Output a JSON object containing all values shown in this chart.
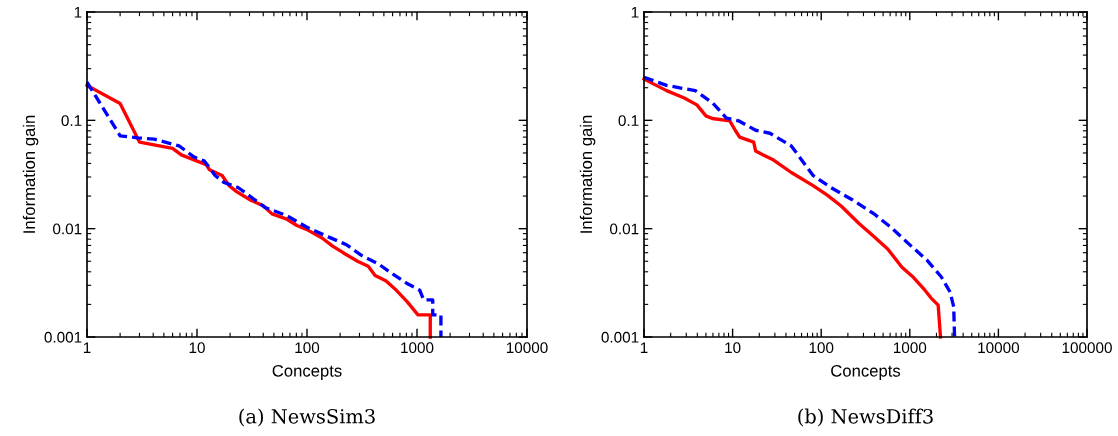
{
  "chart_data": [
    {
      "type": "line",
      "title": "(a) NewsSim3",
      "xlabel": "Concepts",
      "ylabel": "Information gain",
      "log": "xy",
      "xlim": [
        1,
        10000
      ],
      "xticks": [
        1,
        10,
        100,
        1000,
        10000
      ],
      "ylim": [
        0.001,
        1
      ],
      "yticks": [
        0.001,
        0.01,
        0.1,
        1
      ],
      "series": [
        {
          "color": "#ff0000",
          "line_style": "solid",
          "x": [
            1,
            2,
            3,
            6,
            7.2,
            12.1,
            13,
            16.9,
            19.7,
            22.9,
            30.8,
            40,
            48,
            64.6,
            80.9,
            100,
            137,
            171,
            213,
            288,
            360,
            416,
            520,
            650,
            820,
            1020,
            1320,
            1320
          ],
          "values": [
            0.21,
            0.143,
            0.063,
            0.055,
            0.048,
            0.039,
            0.035,
            0.031,
            0.0248,
            0.022,
            0.0183,
            0.0163,
            0.0137,
            0.0123,
            0.0107,
            0.0098,
            0.0082,
            0.0069,
            0.006,
            0.005,
            0.0045,
            0.0037,
            0.0033,
            0.0027,
            0.0021,
            0.0016,
            0.0016,
            0.001
          ]
        },
        {
          "color": "#0000ff",
          "line_style": "dashed",
          "x": [
            1,
            2,
            2.85,
            4.1,
            6.9,
            9.35,
            11.7,
            14.6,
            17.6,
            23.6,
            30.8,
            41.5,
            64.6,
            100,
            156,
            229,
            310,
            450,
            604,
            820,
            1060,
            1150,
            1390,
            1390,
            1650,
            1650
          ],
          "values": [
            0.225,
            0.072,
            0.069,
            0.067,
            0.058,
            0.046,
            0.042,
            0.031,
            0.0267,
            0.024,
            0.0197,
            0.0157,
            0.0133,
            0.0103,
            0.0084,
            0.0071,
            0.0057,
            0.0047,
            0.0038,
            0.0031,
            0.0027,
            0.0022,
            0.0022,
            0.0016,
            0.0016,
            0.001
          ]
        }
      ]
    },
    {
      "type": "line",
      "title": "(b) NewsDiff3",
      "xlabel": "Concepts",
      "ylabel": "Information gain",
      "log": "xy",
      "xlim": [
        1,
        100000
      ],
      "xticks": [
        1,
        10,
        100,
        1000,
        10000,
        100000
      ],
      "ylim": [
        0.001,
        1
      ],
      "yticks": [
        0.001,
        0.01,
        0.1,
        1
      ],
      "series": [
        {
          "color": "#ff0000",
          "line_style": "solid",
          "x": [
            1,
            1.8,
            2.85,
            3.95,
            5,
            5.9,
            9.3,
            10.7,
            12,
            17.3,
            18.2,
            29,
            46,
            81,
            116,
            168,
            269,
            390,
            563,
            816,
            1080,
            1190,
            1430,
            1730,
            2090,
            2220
          ],
          "values": [
            0.24,
            0.188,
            0.161,
            0.139,
            0.11,
            0.104,
            0.099,
            0.081,
            0.07,
            0.063,
            0.052,
            0.043,
            0.033,
            0.025,
            0.0205,
            0.0162,
            0.0111,
            0.0085,
            0.0065,
            0.0044,
            0.0036,
            0.0033,
            0.0028,
            0.0023,
            0.00197,
            0.001
          ]
        },
        {
          "color": "#0000ff",
          "line_style": "dashed",
          "x": [
            1,
            1.8,
            3.8,
            6,
            8.5,
            11.7,
            18.2,
            26.4,
            46,
            81,
            128,
            224,
            390,
            620,
            980,
            1570,
            2260,
            2850,
            3130,
            3200
          ],
          "values": [
            0.25,
            0.21,
            0.188,
            0.144,
            0.105,
            0.099,
            0.081,
            0.076,
            0.058,
            0.031,
            0.024,
            0.0185,
            0.0138,
            0.0102,
            0.0072,
            0.0051,
            0.0036,
            0.0026,
            0.0019,
            0.001
          ]
        }
      ]
    }
  ]
}
